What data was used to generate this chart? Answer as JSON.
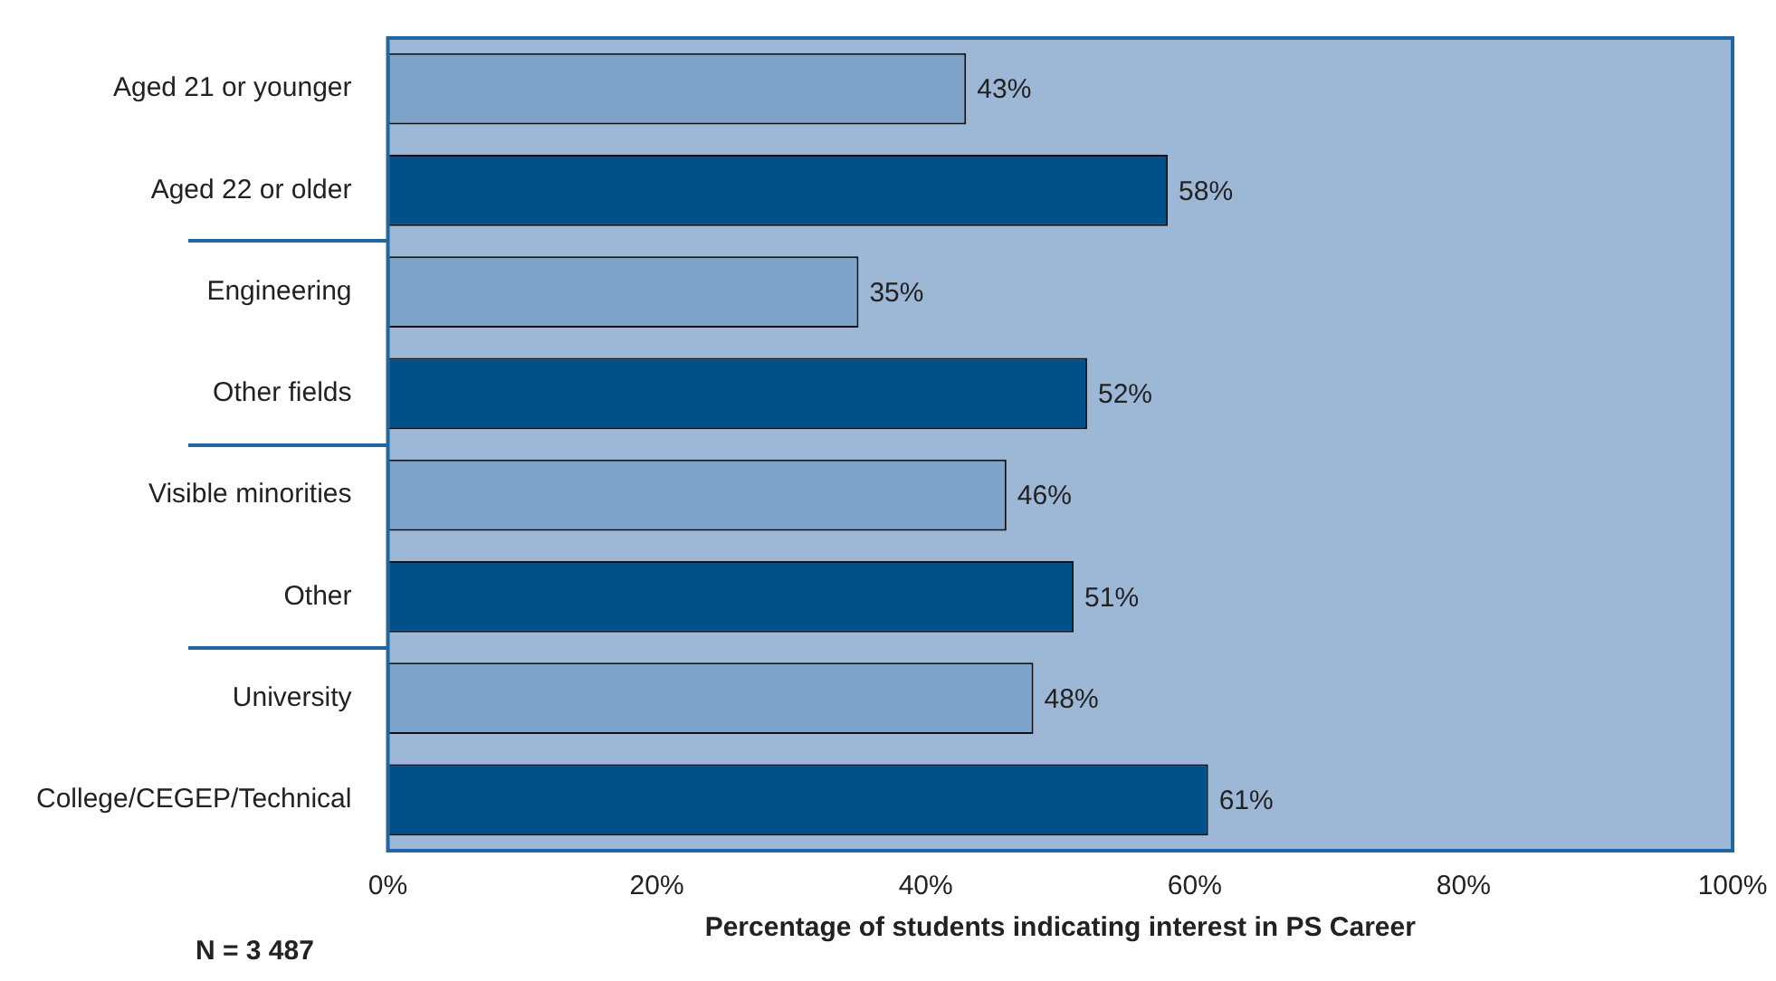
{
  "chart_data": {
    "type": "bar",
    "orientation": "horizontal",
    "categories": [
      "Aged 21 or younger",
      "Aged 22 or older",
      "Engineering",
      "Other fields",
      "Visible minorities",
      "Other",
      "University",
      "College/CEGEP/Technical"
    ],
    "values": [
      43,
      58,
      35,
      52,
      46,
      51,
      48,
      61
    ],
    "colors": [
      "#7fa3c9",
      "#00508a",
      "#7fa3c9",
      "#00508a",
      "#7fa3c9",
      "#00508a",
      "#7fa3c9",
      "#00508a"
    ],
    "xlim": [
      0,
      100
    ],
    "xticks": [
      {
        "value": 0,
        "label": "0%"
      },
      {
        "value": 20,
        "label": "20%"
      },
      {
        "value": 40,
        "label": "40%"
      },
      {
        "value": 60,
        "label": "60%"
      },
      {
        "value": 80,
        "label": "80%"
      },
      {
        "value": 100,
        "label": "100%"
      }
    ],
    "xlabel": "Percentage of students indicating interest in PS Career",
    "value_labels": [
      "43%",
      "58%",
      "35%",
      "52%",
      "46%",
      "51%",
      "48%",
      "61%"
    ],
    "annotations": [
      "N = 3 487"
    ],
    "grid": false,
    "legend": false
  }
}
